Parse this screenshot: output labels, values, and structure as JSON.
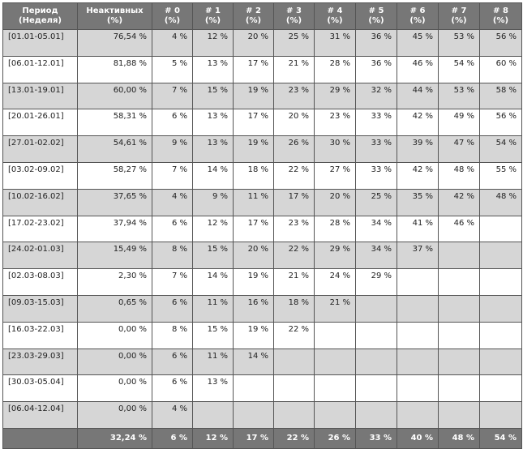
{
  "headers": [
    [
      "Период",
      "(Неделя)"
    ],
    [
      "Неактивных",
      "(%)"
    ],
    [
      "# 0",
      "(%)"
    ],
    [
      "# 1",
      "(%)"
    ],
    [
      "# 2",
      "(%)"
    ],
    [
      "# 3",
      "(%)"
    ],
    [
      "# 4",
      "(%)"
    ],
    [
      "# 5",
      "(%)"
    ],
    [
      "# 6",
      "(%)"
    ],
    [
      "# 7",
      "(%)"
    ],
    [
      "# 8",
      "(%)"
    ]
  ],
  "rows": [
    [
      "[01.01-05.01]",
      "76,54 %",
      "4 %",
      "12 %",
      "20 %",
      "25 %",
      "31 %",
      "36 %",
      "45 %",
      "53 %",
      "56 %"
    ],
    [
      "[06.01-12.01]",
      "81,88 %",
      "5 %",
      "13 %",
      "17 %",
      "21 %",
      "28 %",
      "36 %",
      "46 %",
      "54 %",
      "60 %"
    ],
    [
      "[13.01-19.01]",
      "60,00 %",
      "7 %",
      "15 %",
      "19 %",
      "23 %",
      "29 %",
      "32 %",
      "44 %",
      "53 %",
      "58 %"
    ],
    [
      "[20.01-26.01]",
      "58,31 %",
      "6 %",
      "13 %",
      "17 %",
      "20 %",
      "23 %",
      "33 %",
      "42 %",
      "49 %",
      "56 %"
    ],
    [
      "[27.01-02.02]",
      "54,61 %",
      "9 %",
      "13 %",
      "19 %",
      "26 %",
      "30 %",
      "33 %",
      "39 %",
      "47 %",
      "54 %"
    ],
    [
      "[03.02-09.02]",
      "58,27 %",
      "7 %",
      "14 %",
      "18 %",
      "22 %",
      "27 %",
      "33 %",
      "42 %",
      "48 %",
      "55 %"
    ],
    [
      "[10.02-16.02]",
      "37,65 %",
      "4 %",
      "9 %",
      "11 %",
      "17 %",
      "20 %",
      "25 %",
      "35 %",
      "42 %",
      "48 %"
    ],
    [
      "[17.02-23.02]",
      "37,94 %",
      "6 %",
      "12 %",
      "17 %",
      "23 %",
      "28 %",
      "34 %",
      "41 %",
      "46 %",
      ""
    ],
    [
      "[24.02-01.03]",
      "15,49 %",
      "8 %",
      "15 %",
      "20 %",
      "22 %",
      "29 %",
      "34 %",
      "37 %",
      "",
      ""
    ],
    [
      "[02.03-08.03]",
      "2,30 %",
      "7 %",
      "14 %",
      "19 %",
      "21 %",
      "24 %",
      "29 %",
      "",
      "",
      ""
    ],
    [
      "[09.03-15.03]",
      "0,65 %",
      "6 %",
      "11 %",
      "16 %",
      "18 %",
      "21 %",
      "",
      "",
      "",
      ""
    ],
    [
      "[16.03-22.03]",
      "0,00 %",
      "8 %",
      "15 %",
      "19 %",
      "22 %",
      "",
      "",
      "",
      "",
      ""
    ],
    [
      "[23.03-29.03]",
      "0,00 %",
      "6 %",
      "11 %",
      "14 %",
      "",
      "",
      "",
      "",
      "",
      ""
    ],
    [
      "[30.03-05.04]",
      "0,00 %",
      "6 %",
      "13 %",
      "",
      "",
      "",
      "",
      "",
      "",
      ""
    ],
    [
      "[06.04-12.04]",
      "0,00 %",
      "4 %",
      "",
      "",
      "",
      "",
      "",
      "",
      "",
      ""
    ]
  ],
  "footer": [
    "",
    "32,24 %",
    "6 %",
    "12 %",
    "17 %",
    "22 %",
    "26 %",
    "33 %",
    "40 %",
    "48 %",
    "54 %"
  ],
  "colors": {
    "header_bg": "#777777",
    "alt_row_bg": "#d6d6d6",
    "row_bg": "#ffffff"
  }
}
